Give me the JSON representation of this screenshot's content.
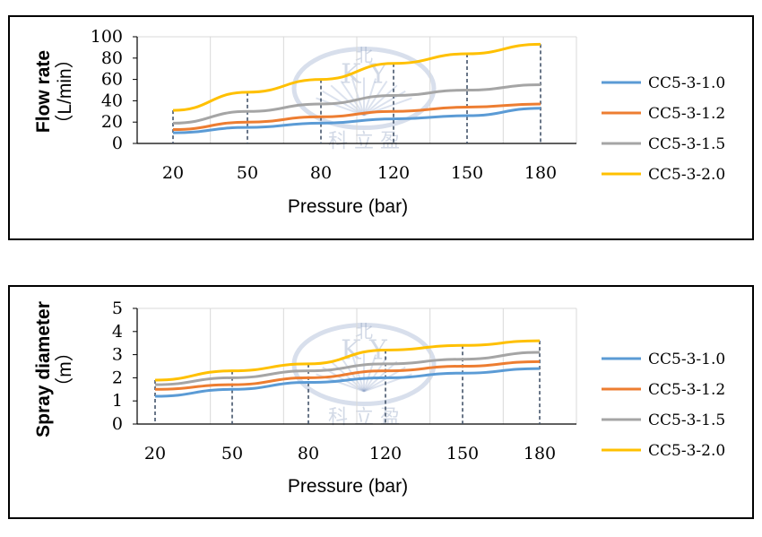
{
  "colors": {
    "CC5-3-1.0": "#5b9bd5",
    "CC5-3-1.2": "#ed7d31",
    "CC5-3-1.5": "#a5a5a5",
    "CC5-3-2.0": "#ffc000",
    "grid": "#d9d9d9",
    "guide": "#44546a"
  },
  "watermark": {
    "top": "K  Y",
    "bottom": "科 立 盈",
    "shield": "北"
  },
  "chart_data": [
    {
      "type": "line",
      "title": "",
      "xlabel": "Pressure (bar)",
      "ylabel_line1": "Flow rate",
      "ylabel_line2": "（L/min）",
      "categories": [
        "20",
        "50",
        "80",
        "120",
        "150",
        "180"
      ],
      "ylim": [
        0,
        100
      ],
      "yticks": [
        "0",
        "20",
        "40",
        "60",
        "80",
        "100"
      ],
      "grid": "vertical gridlines, dashed drop lines at each category",
      "legend_position": "right",
      "series": [
        {
          "name": "CC5-3-1.0",
          "values": [
            10,
            15,
            19,
            23,
            26,
            33
          ]
        },
        {
          "name": "CC5-3-1.2",
          "values": [
            13,
            20,
            25,
            30,
            34,
            37
          ]
        },
        {
          "name": "CC5-3-1.5",
          "values": [
            19,
            30,
            37,
            45,
            50,
            55
          ]
        },
        {
          "name": "CC5-3-2.0",
          "values": [
            31,
            48,
            60,
            75,
            84,
            93
          ]
        }
      ],
      "legend_labels": [
        "CC5-3-1.0",
        "CC5-3-1.2",
        "CC5-3-1.5",
        "CC5-3-2.0"
      ]
    },
    {
      "type": "line",
      "title": "",
      "xlabel": "Pressure (bar)",
      "ylabel_line1": "Spray diameter",
      "ylabel_line2": "（m）",
      "categories": [
        "20",
        "50",
        "80",
        "120",
        "150",
        "180"
      ],
      "ylim": [
        0,
        5
      ],
      "yticks": [
        "0",
        "1",
        "2",
        "3",
        "4",
        "5"
      ],
      "grid": "vertical gridlines, dashed drop lines at each category",
      "legend_position": "right",
      "series": [
        {
          "name": "CC5-3-1.0",
          "values": [
            1.2,
            1.5,
            1.8,
            2.0,
            2.2,
            2.4
          ]
        },
        {
          "name": "CC5-3-1.2",
          "values": [
            1.5,
            1.7,
            2.0,
            2.3,
            2.5,
            2.7
          ]
        },
        {
          "name": "CC5-3-1.5",
          "values": [
            1.7,
            2.0,
            2.3,
            2.6,
            2.8,
            3.1
          ]
        },
        {
          "name": "CC5-3-2.0",
          "values": [
            1.9,
            2.3,
            2.6,
            3.2,
            3.4,
            3.6
          ]
        }
      ],
      "legend_labels": [
        "CC5-3-1.0",
        "CC5-3-1.2",
        "CC5-3-1.5",
        "CC5-3-2.0"
      ]
    }
  ]
}
